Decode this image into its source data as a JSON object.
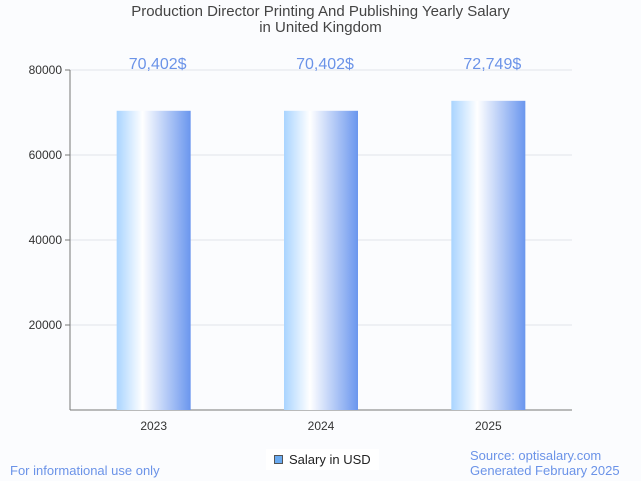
{
  "chart_data": {
    "type": "bar",
    "title": "Production Director Printing And Publishing Yearly Salary in United Kingdom",
    "title_lines": [
      "Production Director Printing And Publishing Yearly Salary",
      "in United Kingdom"
    ],
    "categories": [
      "2023",
      "2024",
      "2025"
    ],
    "values": [
      70402,
      70402,
      72749
    ],
    "data_labels": [
      "70,402$",
      "70,402$",
      "72,749$"
    ],
    "yticks": [
      20000,
      40000,
      60000,
      80000
    ],
    "ylim": [
      0,
      80000
    ],
    "xlabel": "",
    "ylabel": "",
    "grid": true,
    "legend": {
      "label": "Salary in USD",
      "placement": "bottom-center"
    },
    "colors": {
      "bar_light": "#a9d4ff",
      "bar_mid": "#ffffff",
      "bar_dark": "#6a96ee",
      "label": "#6b93e8"
    }
  },
  "footer": {
    "left": "For informational use only",
    "source": "Source: optisalary.com",
    "generated": "Generated February 2025"
  }
}
